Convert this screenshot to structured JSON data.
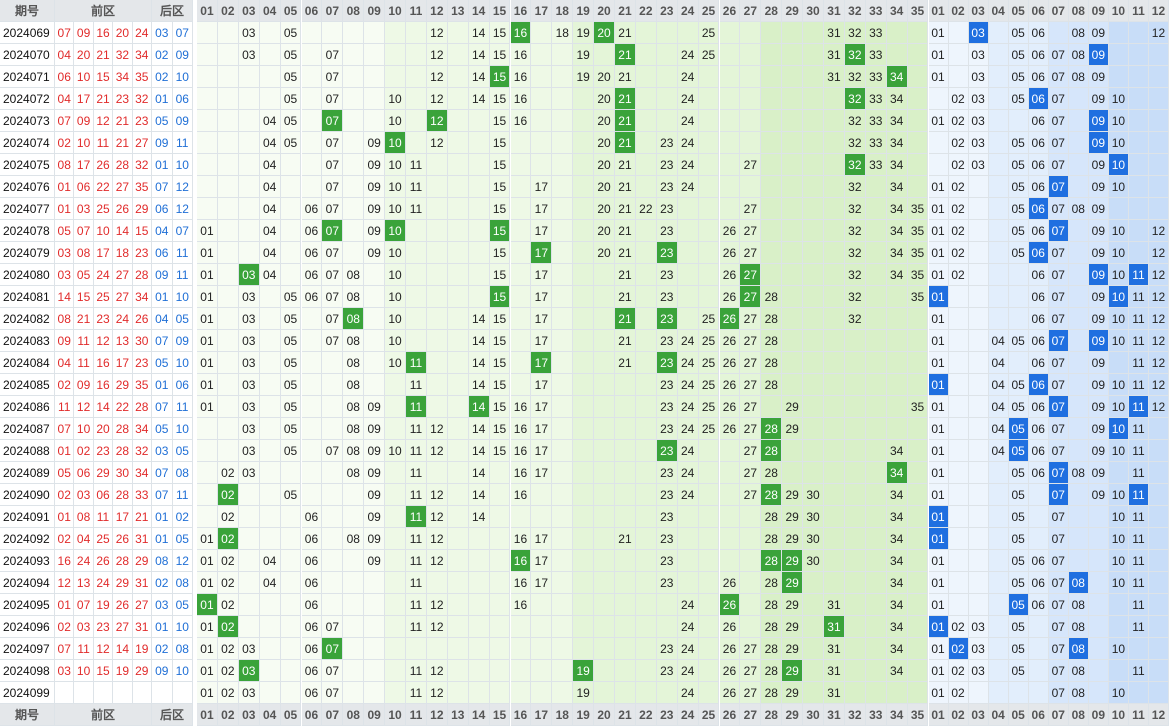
{
  "header": {
    "period": "期号",
    "front": "前区",
    "back": "后区"
  },
  "front_cols": [
    "01",
    "02",
    "03",
    "04",
    "05",
    "06",
    "07",
    "08",
    "09",
    "10",
    "11",
    "12",
    "13",
    "14",
    "15",
    "16",
    "17",
    "18",
    "19",
    "20",
    "21",
    "22",
    "23",
    "24",
    "25",
    "26",
    "27",
    "28",
    "29",
    "30",
    "31",
    "32",
    "33",
    "34",
    "35"
  ],
  "back_cols": [
    "01",
    "02",
    "03",
    "04",
    "05",
    "06",
    "07",
    "08",
    "09",
    "10",
    "11",
    "12"
  ],
  "colors": {
    "front_hit": "#3aa33a",
    "back_hit": "#1f6fe0",
    "front_text": "#e12b2b",
    "back_text": "#1f6fd6",
    "header_bg": "#e4e7ea"
  },
  "rows": [
    {
      "period": "2024069",
      "front": [
        "07",
        "09",
        "16",
        "20",
        "24"
      ],
      "back": [
        "03",
        "07"
      ],
      "fc": "03 05 12 14 15 18 19 21 25 31 32 33",
      "bc": "01 05 06 08 09 12"
    },
    {
      "period": "2024070",
      "front": [
        "04",
        "20",
        "21",
        "32",
        "34"
      ],
      "back": [
        "02",
        "09"
      ],
      "fc": "03 05 07 12 14 15 16 19 24 25 31 33",
      "bc": "01 03 05 06 07 08"
    },
    {
      "period": "2024071",
      "front": [
        "06",
        "10",
        "15",
        "34",
        "35"
      ],
      "back": [
        "02",
        "10"
      ],
      "fc": "05 07 12 14 16 19 20 21 24 31 32 33",
      "bc": "01 03 05 06 07 08 09"
    },
    {
      "period": "2024072",
      "front": [
        "04",
        "17",
        "21",
        "23",
        "32"
      ],
      "back": [
        "01",
        "06"
      ],
      "fc": "05 07 10 12 14 15 16 20 24 33 34",
      "bc": "02 03 05 07 09 10"
    },
    {
      "period": "2024073",
      "front": [
        "07",
        "09",
        "12",
        "21",
        "23"
      ],
      "back": [
        "05",
        "09"
      ],
      "fc": "04 05 10 15 16 20 24 32 33 34",
      "bc": "01 02 03 06 07 10"
    },
    {
      "period": "2024074",
      "front": [
        "02",
        "10",
        "11",
        "21",
        "27"
      ],
      "back": [
        "09",
        "11"
      ],
      "fc": "04 05 07 09 12 15 20 23 24 32 33 34",
      "bc": "02 03 05 06 07 10"
    },
    {
      "period": "2024075",
      "front": [
        "08",
        "17",
        "26",
        "28",
        "32"
      ],
      "back": [
        "01",
        "10"
      ],
      "fc": "04 07 09 10 11 15 20 21 23 24 27 33 34",
      "bc": "02 03 05 06 07 09"
    },
    {
      "period": "2024076",
      "front": [
        "01",
        "06",
        "22",
        "27",
        "35"
      ],
      "back": [
        "07",
        "12"
      ],
      "fc": "04 07 09 10 11 15 17 20 21 23 24 32 34",
      "bc": "01 02 05 06 09 10"
    },
    {
      "period": "2024077",
      "front": [
        "01",
        "03",
        "25",
        "26",
        "29"
      ],
      "back": [
        "06",
        "12"
      ],
      "fc": "04 06 07 09 10 11 15 17 20 21 22 23 27 32 34 35",
      "bc": "01 02 05 07 08 09"
    },
    {
      "period": "2024078",
      "front": [
        "05",
        "07",
        "10",
        "14",
        "15"
      ],
      "back": [
        "04",
        "07"
      ],
      "fc": "01 04 06 09 17 20 21 23 26 27 32 34 35",
      "bc": "01 02 05 06 09 10 12"
    },
    {
      "period": "2024079",
      "front": [
        "03",
        "08",
        "17",
        "18",
        "23"
      ],
      "back": [
        "06",
        "11"
      ],
      "fc": "01 04 06 07 09 10 15 20 21 26 27 32 34 35",
      "bc": "01 02 05 07 09 10 12"
    },
    {
      "period": "2024080",
      "front": [
        "03",
        "05",
        "24",
        "27",
        "28"
      ],
      "back": [
        "09",
        "11"
      ],
      "fc": "01 04 06 07 08 10 15 17 21 23 26 32 34 35",
      "bc": "01 02 06 07 10 12"
    },
    {
      "period": "2024081",
      "front": [
        "14",
        "15",
        "25",
        "27",
        "34"
      ],
      "back": [
        "01",
        "10"
      ],
      "fc": "01 03 05 06 07 08 10 17 21 23 26 28 32 35",
      "bc": "06 07 09 11 12"
    },
    {
      "period": "2024082",
      "front": [
        "08",
        "21",
        "23",
        "24",
        "26"
      ],
      "back": [
        "04",
        "05"
      ],
      "fc": "01 03 05 07 10 14 15 17 25 27 28 32",
      "bc": "01 06 07 09 10 11 12"
    },
    {
      "period": "2024083",
      "front": [
        "09",
        "11",
        "12",
        "13",
        "30"
      ],
      "back": [
        "07",
        "09"
      ],
      "fc": "01 03 05 07 08 10 14 15 17 21 23 24 25 26 27 28",
      "bc": "01 04 05 06 10 11 12"
    },
    {
      "period": "2024084",
      "front": [
        "04",
        "11",
        "16",
        "17",
        "23"
      ],
      "back": [
        "05",
        "10"
      ],
      "fc": "01 03 05 08 10 14 15 21 24 25 26 27 28",
      "bc": "01 04 06 07 09 11 12"
    },
    {
      "period": "2024085",
      "front": [
        "02",
        "09",
        "16",
        "29",
        "35"
      ],
      "back": [
        "01",
        "06"
      ],
      "fc": "01 03 05 08 11 14 15 17 23 24 25 26 27 28",
      "bc": "04 05 07 09 10 11 12"
    },
    {
      "period": "2024086",
      "front": [
        "11",
        "12",
        "14",
        "22",
        "28"
      ],
      "back": [
        "07",
        "11"
      ],
      "fc": "01 03 05 08 09 15 16 17 23 24 25 26 27 29 35",
      "bc": "01 04 05 06 09 10 12"
    },
    {
      "period": "2024087",
      "front": [
        "07",
        "10",
        "20",
        "28",
        "34"
      ],
      "back": [
        "05",
        "10"
      ],
      "fc": "03 05 08 09 11 12 14 15 16 17 23 24 25 26 27 29",
      "bc": "01 04 06 07 09 11"
    },
    {
      "period": "2024088",
      "front": [
        "01",
        "02",
        "23",
        "28",
        "32"
      ],
      "back": [
        "03",
        "05"
      ],
      "fc": "03 05 07 08 09 10 11 12 14 15 16 17 24 27 34",
      "bc": "01 04 06 07 09 10 11"
    },
    {
      "period": "2024089",
      "front": [
        "05",
        "06",
        "29",
        "30",
        "34"
      ],
      "back": [
        "07",
        "08"
      ],
      "fc": "02 03 08 09 11 14 16 17 23 24 27 28",
      "bc": "01 05 06 08 09 11"
    },
    {
      "period": "2024090",
      "front": [
        "02",
        "03",
        "06",
        "28",
        "33"
      ],
      "back": [
        "07",
        "11"
      ],
      "fc": "05 09 11 12 14 16 23 24 27 29 30 34",
      "bc": "01 05 09 10"
    },
    {
      "period": "2024091",
      "front": [
        "01",
        "08",
        "11",
        "17",
        "21"
      ],
      "back": [
        "01",
        "02"
      ],
      "fc": "02 06 09 12 14 23 28 29 30 34",
      "bc": "05 07 10 11"
    },
    {
      "period": "2024092",
      "front": [
        "02",
        "04",
        "25",
        "26",
        "31"
      ],
      "back": [
        "01",
        "05"
      ],
      "fc": "01 06 08 09 11 12 16 17 21 23 28 29 30 34",
      "bc": "05 07 10 11"
    },
    {
      "period": "2024093",
      "front": [
        "16",
        "24",
        "26",
        "28",
        "29"
      ],
      "back": [
        "08",
        "12"
      ],
      "fc": "01 02 04 06 09 11 12 17 23 30 34",
      "bc": "01 05 06 07 10 11"
    },
    {
      "period": "2024094",
      "front": [
        "12",
        "13",
        "24",
        "29",
        "31"
      ],
      "back": [
        "02",
        "08"
      ],
      "fc": "01 02 04 06 11 16 17 23 26 28 34",
      "bc": "01 05 06 07 10 11"
    },
    {
      "period": "2024095",
      "front": [
        "01",
        "07",
        "19",
        "26",
        "27"
      ],
      "back": [
        "03",
        "05"
      ],
      "fc": "02 06 11 12 16 24 28 29 31 34",
      "bc": "01 06 07 08 11"
    },
    {
      "period": "2024096",
      "front": [
        "02",
        "03",
        "23",
        "27",
        "31"
      ],
      "back": [
        "01",
        "10"
      ],
      "fc": "01 06 07 11 12 24 26 28 29 34",
      "bc": "02 03 05 07 08 11"
    },
    {
      "period": "2024097",
      "front": [
        "07",
        "11",
        "12",
        "14",
        "19"
      ],
      "back": [
        "02",
        "08"
      ],
      "fc": "01 02 03 06 23 24 26 27 28 29 31 34",
      "bc": "01 03 05 07 10"
    },
    {
      "period": "2024098",
      "front": [
        "03",
        "10",
        "15",
        "19",
        "29"
      ],
      "back": [
        "09",
        "10"
      ],
      "fc": "01 02 06 07 11 12 23 24 26 27 28 31 34",
      "bc": "01 02 03 05 07 08 11"
    },
    {
      "period": "2024099",
      "front": [],
      "back": [],
      "fc": "01 02 03 06 07 11 12 19 24 26 27 28 29 31",
      "bc": "01 02 07 08 10"
    }
  ],
  "hits": [
    {
      "f": [
        16,
        20
      ],
      "b": [
        3
      ]
    },
    {
      "f": [
        21,
        32
      ],
      "b": [
        9
      ]
    },
    {
      "f": [
        15,
        34
      ],
      "b": []
    },
    {
      "f": [
        21,
        32
      ],
      "b": [
        6
      ]
    },
    {
      "f": [
        7,
        12,
        21
      ],
      "b": [
        9
      ]
    },
    {
      "f": [
        10,
        21
      ],
      "b": [
        9
      ]
    },
    {
      "f": [
        32
      ],
      "b": [
        10
      ]
    },
    {
      "f": [],
      "b": [
        7
      ]
    },
    {
      "f": [],
      "b": [
        6
      ]
    },
    {
      "f": [
        7,
        10,
        15
      ],
      "b": [
        7
      ]
    },
    {
      "f": [
        17,
        23
      ],
      "b": [
        6
      ]
    },
    {
      "f": [
        3,
        27
      ],
      "b": [
        9,
        11
      ]
    },
    {
      "f": [
        15,
        27
      ],
      "b": [
        1,
        10
      ]
    },
    {
      "f": [
        8,
        21,
        23,
        26
      ],
      "b": []
    },
    {
      "f": [],
      "b": [
        7,
        9
      ]
    },
    {
      "f": [
        11,
        17,
        23
      ],
      "b": []
    },
    {
      "f": [],
      "b": [
        1,
        6
      ]
    },
    {
      "f": [
        11,
        14
      ],
      "b": [
        7,
        11
      ]
    },
    {
      "f": [
        28
      ],
      "b": [
        5,
        10
      ]
    },
    {
      "f": [
        23,
        28
      ],
      "b": [
        5
      ]
    },
    {
      "f": [
        34
      ],
      "b": [
        7
      ]
    },
    {
      "f": [
        2,
        28
      ],
      "b": [
        7,
        11
      ]
    },
    {
      "f": [
        11
      ],
      "b": [
        1
      ]
    },
    {
      "f": [
        2
      ],
      "b": [
        1
      ]
    },
    {
      "f": [
        16,
        28,
        29
      ],
      "b": []
    },
    {
      "f": [
        29
      ],
      "b": [
        8
      ]
    },
    {
      "f": [
        1,
        26
      ],
      "b": [
        5
      ]
    },
    {
      "f": [
        2,
        31
      ],
      "b": [
        1
      ]
    },
    {
      "f": [
        7
      ],
      "b": [
        2,
        8
      ]
    },
    {
      "f": [
        3,
        19,
        29
      ],
      "b": []
    },
    {
      "f": [],
      "b": []
    }
  ]
}
